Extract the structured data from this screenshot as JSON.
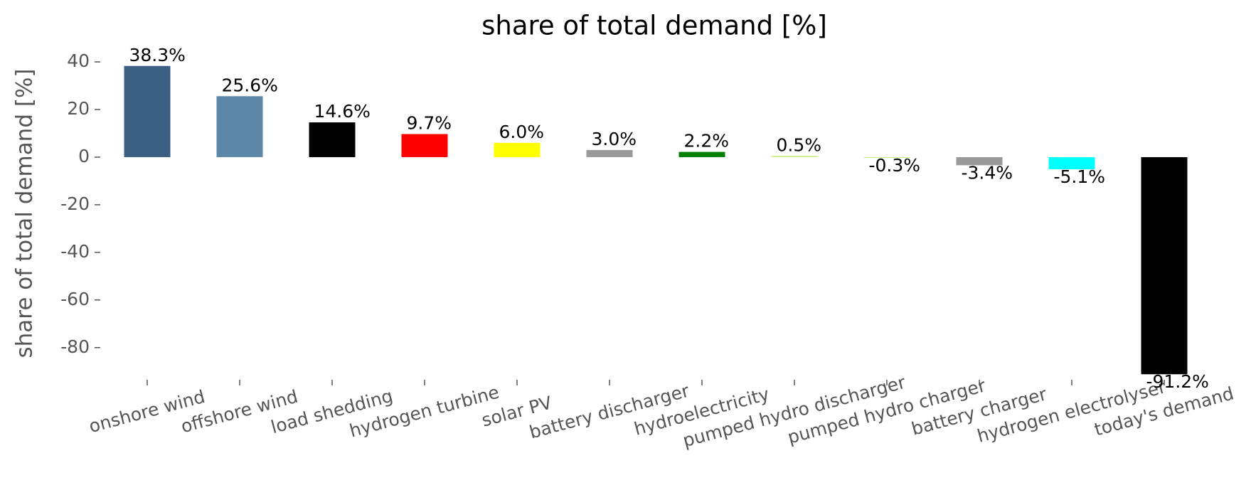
{
  "chart_data": {
    "type": "bar",
    "title": "share of total demand [%]",
    "ylabel": "share of total demand [%]",
    "categories": [
      "onshore wind",
      "offshore wind",
      "load shedding",
      "hydrogen turbine",
      "solar PV",
      "battery discharger",
      "hydroelectricity",
      "pumped hydro discharger",
      "pumped hydro charger",
      "battery charger",
      "hydrogen electrolyser",
      "today's demand"
    ],
    "values": [
      38.3,
      25.6,
      14.6,
      9.7,
      6.0,
      3.0,
      2.2,
      0.5,
      -0.3,
      -3.4,
      -5.1,
      -91.2
    ],
    "value_labels": [
      "38.3%",
      "25.6%",
      "14.6%",
      "9.7%",
      "6.0%",
      "3.0%",
      "2.2%",
      "0.5%",
      "-0.3%",
      "-3.4%",
      "-5.1%",
      "-91.2%"
    ],
    "colors": [
      "#3a5f82",
      "#5d87a8",
      "#000000",
      "#ff0000",
      "#ffff00",
      "#999999",
      "#008000",
      "#c8ec8c",
      "#c8ec8c",
      "#999999",
      "#00ffff",
      "#000000"
    ],
    "ylim": [
      -97.7,
      44.8
    ],
    "yticks": [
      40,
      20,
      0,
      -20,
      -40,
      -60,
      -80
    ],
    "grid": false
  }
}
